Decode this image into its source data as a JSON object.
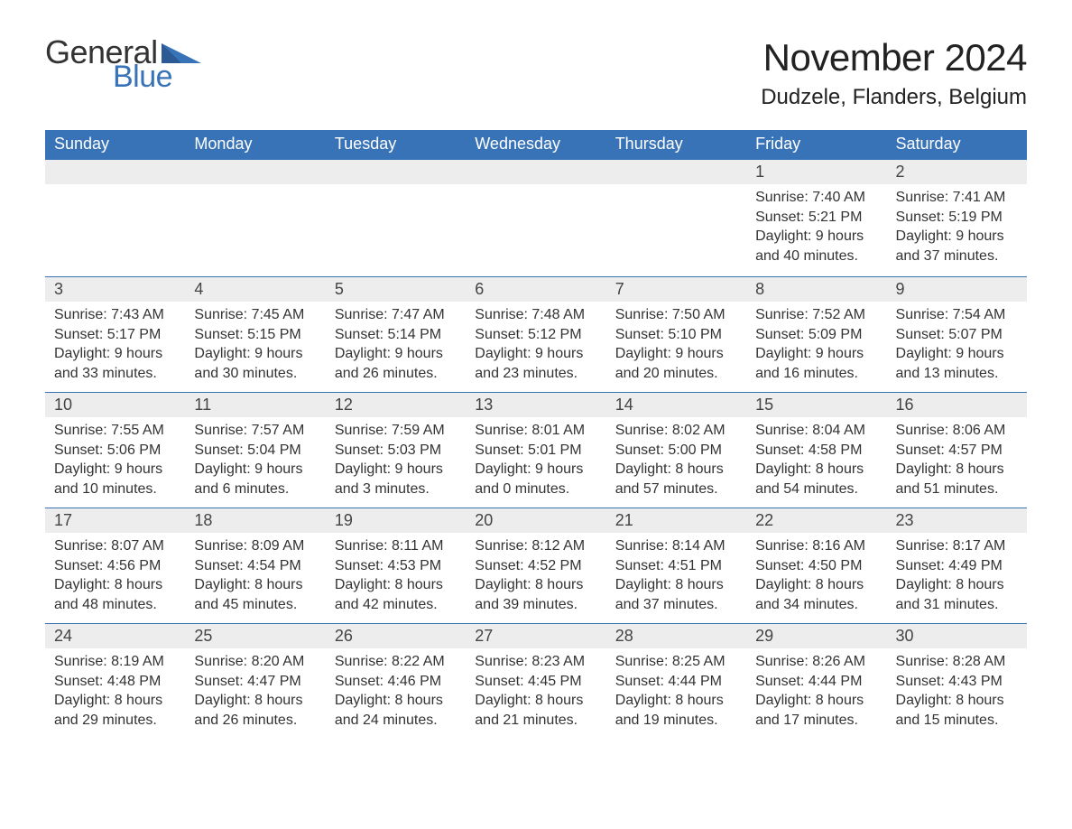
{
  "logo": {
    "word1": "General",
    "word2": "Blue",
    "general_color": "#333333",
    "blue_color": "#3973b7"
  },
  "title": "November 2024",
  "location": "Dudzele, Flanders, Belgium",
  "header_bg": "#3973b7",
  "header_text_color": "#ffffff",
  "daynum_bg": "#ededed",
  "border_color": "#3973b7",
  "text_color": "#333333",
  "background_color": "#ffffff",
  "font_family": "Arial",
  "columns": [
    "Sunday",
    "Monday",
    "Tuesday",
    "Wednesday",
    "Thursday",
    "Friday",
    "Saturday"
  ],
  "weeks": [
    [
      null,
      null,
      null,
      null,
      null,
      {
        "n": "1",
        "sunrise": "Sunrise: 7:40 AM",
        "sunset": "Sunset: 5:21 PM",
        "d1": "Daylight: 9 hours",
        "d2": "and 40 minutes."
      },
      {
        "n": "2",
        "sunrise": "Sunrise: 7:41 AM",
        "sunset": "Sunset: 5:19 PM",
        "d1": "Daylight: 9 hours",
        "d2": "and 37 minutes."
      }
    ],
    [
      {
        "n": "3",
        "sunrise": "Sunrise: 7:43 AM",
        "sunset": "Sunset: 5:17 PM",
        "d1": "Daylight: 9 hours",
        "d2": "and 33 minutes."
      },
      {
        "n": "4",
        "sunrise": "Sunrise: 7:45 AM",
        "sunset": "Sunset: 5:15 PM",
        "d1": "Daylight: 9 hours",
        "d2": "and 30 minutes."
      },
      {
        "n": "5",
        "sunrise": "Sunrise: 7:47 AM",
        "sunset": "Sunset: 5:14 PM",
        "d1": "Daylight: 9 hours",
        "d2": "and 26 minutes."
      },
      {
        "n": "6",
        "sunrise": "Sunrise: 7:48 AM",
        "sunset": "Sunset: 5:12 PM",
        "d1": "Daylight: 9 hours",
        "d2": "and 23 minutes."
      },
      {
        "n": "7",
        "sunrise": "Sunrise: 7:50 AM",
        "sunset": "Sunset: 5:10 PM",
        "d1": "Daylight: 9 hours",
        "d2": "and 20 minutes."
      },
      {
        "n": "8",
        "sunrise": "Sunrise: 7:52 AM",
        "sunset": "Sunset: 5:09 PM",
        "d1": "Daylight: 9 hours",
        "d2": "and 16 minutes."
      },
      {
        "n": "9",
        "sunrise": "Sunrise: 7:54 AM",
        "sunset": "Sunset: 5:07 PM",
        "d1": "Daylight: 9 hours",
        "d2": "and 13 minutes."
      }
    ],
    [
      {
        "n": "10",
        "sunrise": "Sunrise: 7:55 AM",
        "sunset": "Sunset: 5:06 PM",
        "d1": "Daylight: 9 hours",
        "d2": "and 10 minutes."
      },
      {
        "n": "11",
        "sunrise": "Sunrise: 7:57 AM",
        "sunset": "Sunset: 5:04 PM",
        "d1": "Daylight: 9 hours",
        "d2": "and 6 minutes."
      },
      {
        "n": "12",
        "sunrise": "Sunrise: 7:59 AM",
        "sunset": "Sunset: 5:03 PM",
        "d1": "Daylight: 9 hours",
        "d2": "and 3 minutes."
      },
      {
        "n": "13",
        "sunrise": "Sunrise: 8:01 AM",
        "sunset": "Sunset: 5:01 PM",
        "d1": "Daylight: 9 hours",
        "d2": "and 0 minutes."
      },
      {
        "n": "14",
        "sunrise": "Sunrise: 8:02 AM",
        "sunset": "Sunset: 5:00 PM",
        "d1": "Daylight: 8 hours",
        "d2": "and 57 minutes."
      },
      {
        "n": "15",
        "sunrise": "Sunrise: 8:04 AM",
        "sunset": "Sunset: 4:58 PM",
        "d1": "Daylight: 8 hours",
        "d2": "and 54 minutes."
      },
      {
        "n": "16",
        "sunrise": "Sunrise: 8:06 AM",
        "sunset": "Sunset: 4:57 PM",
        "d1": "Daylight: 8 hours",
        "d2": "and 51 minutes."
      }
    ],
    [
      {
        "n": "17",
        "sunrise": "Sunrise: 8:07 AM",
        "sunset": "Sunset: 4:56 PM",
        "d1": "Daylight: 8 hours",
        "d2": "and 48 minutes."
      },
      {
        "n": "18",
        "sunrise": "Sunrise: 8:09 AM",
        "sunset": "Sunset: 4:54 PM",
        "d1": "Daylight: 8 hours",
        "d2": "and 45 minutes."
      },
      {
        "n": "19",
        "sunrise": "Sunrise: 8:11 AM",
        "sunset": "Sunset: 4:53 PM",
        "d1": "Daylight: 8 hours",
        "d2": "and 42 minutes."
      },
      {
        "n": "20",
        "sunrise": "Sunrise: 8:12 AM",
        "sunset": "Sunset: 4:52 PM",
        "d1": "Daylight: 8 hours",
        "d2": "and 39 minutes."
      },
      {
        "n": "21",
        "sunrise": "Sunrise: 8:14 AM",
        "sunset": "Sunset: 4:51 PM",
        "d1": "Daylight: 8 hours",
        "d2": "and 37 minutes."
      },
      {
        "n": "22",
        "sunrise": "Sunrise: 8:16 AM",
        "sunset": "Sunset: 4:50 PM",
        "d1": "Daylight: 8 hours",
        "d2": "and 34 minutes."
      },
      {
        "n": "23",
        "sunrise": "Sunrise: 8:17 AM",
        "sunset": "Sunset: 4:49 PM",
        "d1": "Daylight: 8 hours",
        "d2": "and 31 minutes."
      }
    ],
    [
      {
        "n": "24",
        "sunrise": "Sunrise: 8:19 AM",
        "sunset": "Sunset: 4:48 PM",
        "d1": "Daylight: 8 hours",
        "d2": "and 29 minutes."
      },
      {
        "n": "25",
        "sunrise": "Sunrise: 8:20 AM",
        "sunset": "Sunset: 4:47 PM",
        "d1": "Daylight: 8 hours",
        "d2": "and 26 minutes."
      },
      {
        "n": "26",
        "sunrise": "Sunrise: 8:22 AM",
        "sunset": "Sunset: 4:46 PM",
        "d1": "Daylight: 8 hours",
        "d2": "and 24 minutes."
      },
      {
        "n": "27",
        "sunrise": "Sunrise: 8:23 AM",
        "sunset": "Sunset: 4:45 PM",
        "d1": "Daylight: 8 hours",
        "d2": "and 21 minutes."
      },
      {
        "n": "28",
        "sunrise": "Sunrise: 8:25 AM",
        "sunset": "Sunset: 4:44 PM",
        "d1": "Daylight: 8 hours",
        "d2": "and 19 minutes."
      },
      {
        "n": "29",
        "sunrise": "Sunrise: 8:26 AM",
        "sunset": "Sunset: 4:44 PM",
        "d1": "Daylight: 8 hours",
        "d2": "and 17 minutes."
      },
      {
        "n": "30",
        "sunrise": "Sunrise: 8:28 AM",
        "sunset": "Sunset: 4:43 PM",
        "d1": "Daylight: 8 hours",
        "d2": "and 15 minutes."
      }
    ]
  ]
}
